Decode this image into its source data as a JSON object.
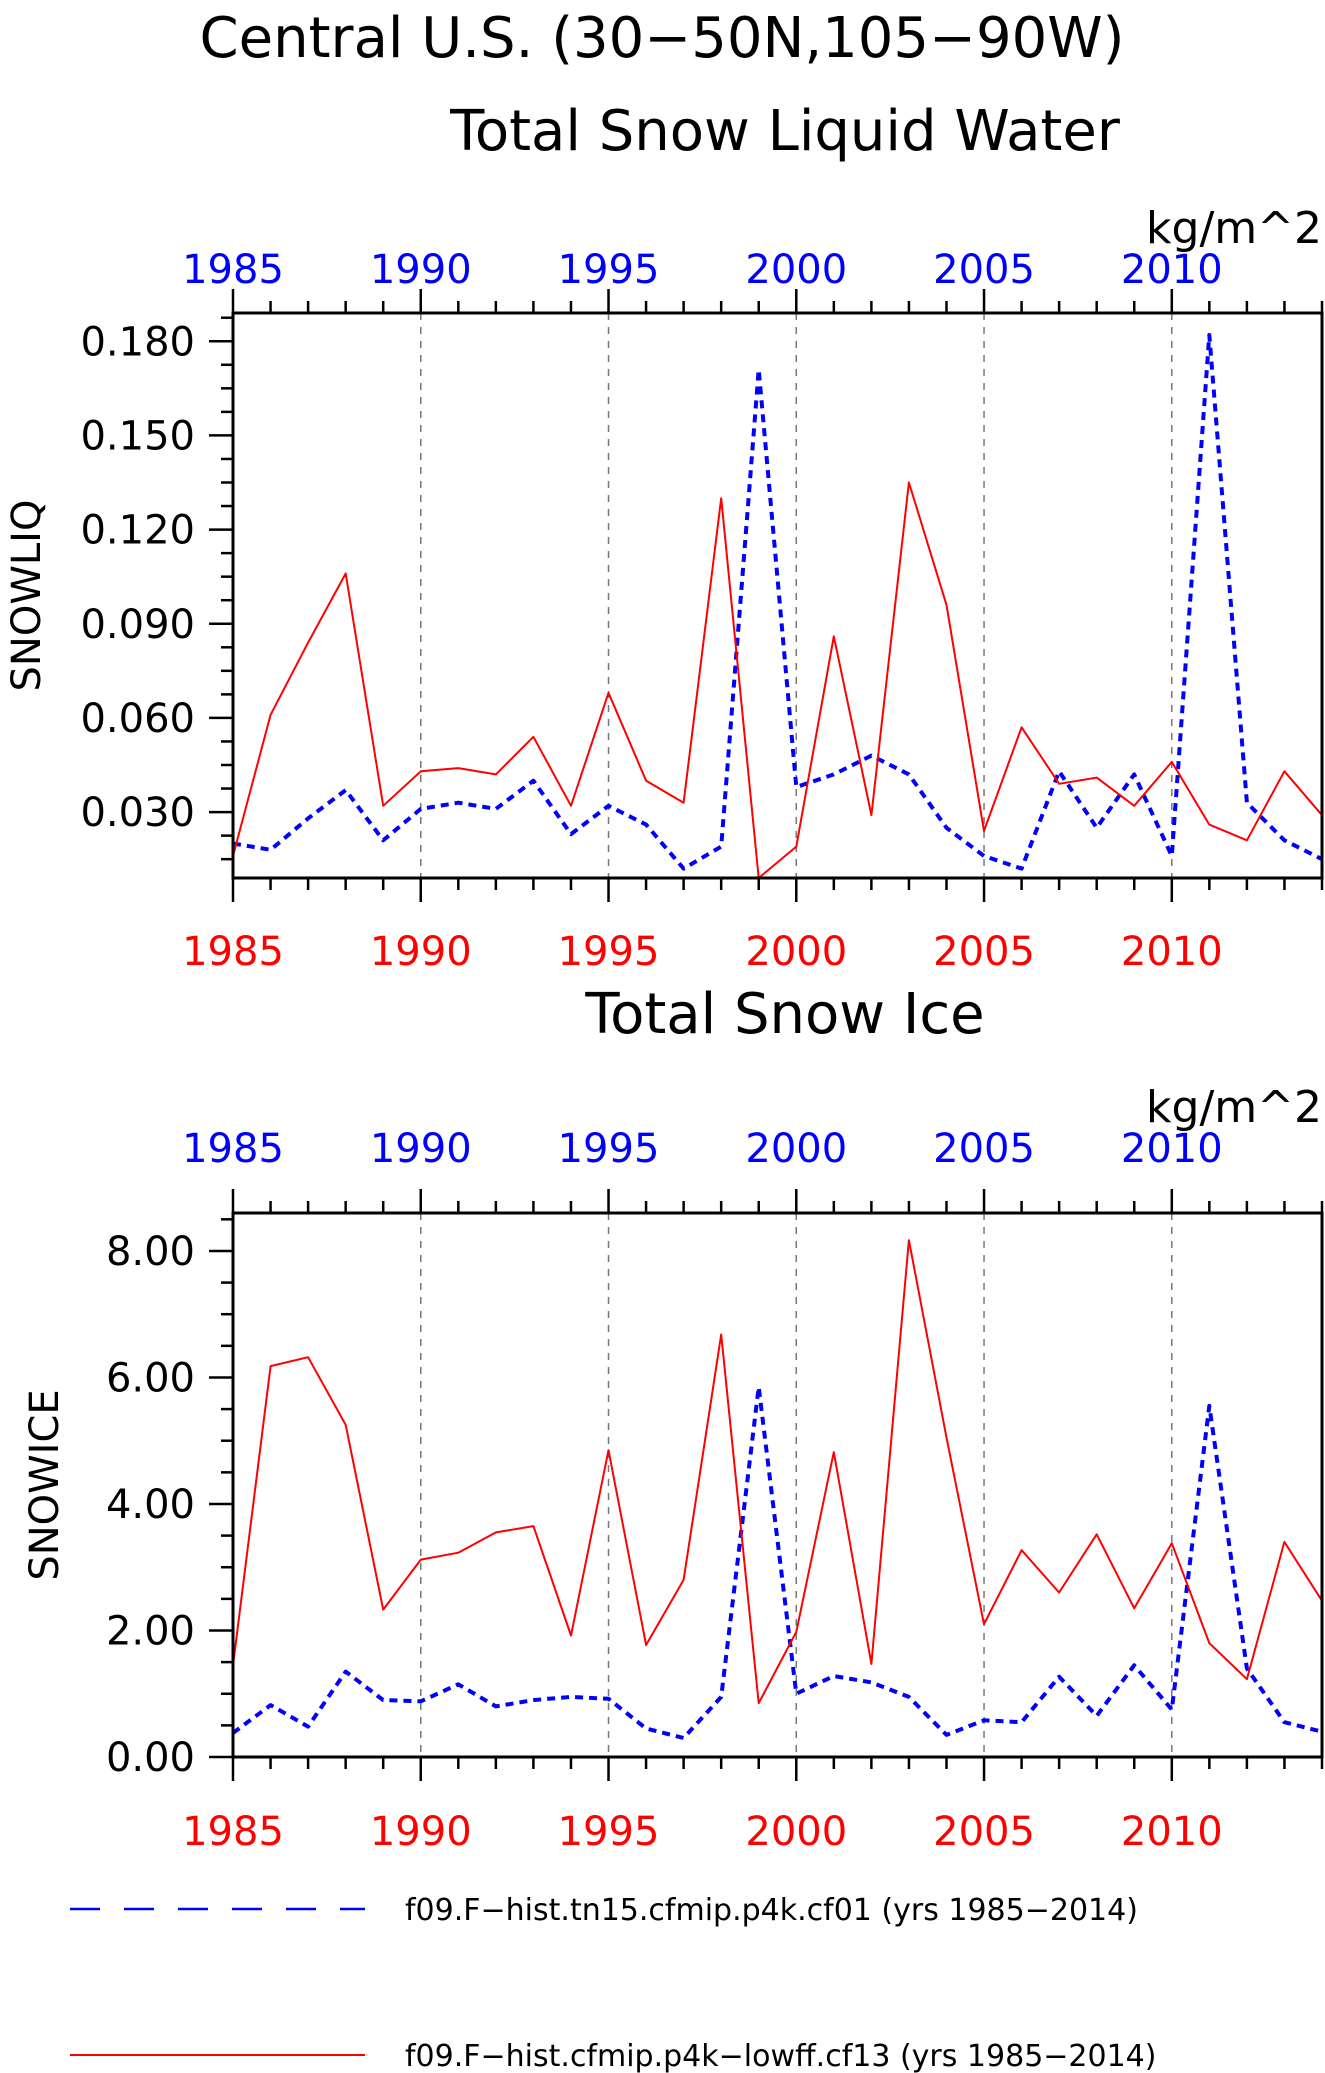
{
  "header": {
    "region_title": "Central U.S. (30−50N,105−90W)"
  },
  "colors": {
    "series_a": "#0000ff",
    "series_b": "#ff0000",
    "axis": "#000000",
    "grid": "#777777"
  },
  "chart_data": [
    {
      "type": "line",
      "title": "Total Snow Liquid Water",
      "units": "kg/m^2",
      "ylabel": "SNOWLIQ",
      "xlim": [
        1985,
        2014
      ],
      "ylim": [
        0.009,
        0.189
      ],
      "x_ticks": [
        "1985",
        "1990",
        "1995",
        "2000",
        "2005",
        "2010"
      ],
      "y_ticks": [
        "0.030",
        "0.060",
        "0.090",
        "0.120",
        "0.150",
        "0.180"
      ],
      "grid": "vertical dashed at major x ticks",
      "x": [
        1985,
        1986,
        1987,
        1988,
        1989,
        1990,
        1991,
        1992,
        1993,
        1994,
        1995,
        1996,
        1997,
        1998,
        1999,
        2000,
        2001,
        2002,
        2003,
        2004,
        2005,
        2006,
        2007,
        2008,
        2009,
        2010,
        2011,
        2012,
        2013,
        2014
      ],
      "series": [
        {
          "name": "f09.F−hist.tn15.cfmip.p4k.cf01 (yrs 1985−2014)",
          "style": "dashed",
          "values": [
            0.02,
            0.018,
            0.028,
            0.037,
            0.021,
            0.031,
            0.033,
            0.031,
            0.04,
            0.023,
            0.032,
            0.026,
            0.012,
            0.019,
            0.171,
            0.038,
            0.042,
            0.048,
            0.042,
            0.025,
            0.016,
            0.012,
            0.043,
            0.025,
            0.042,
            0.016,
            0.182,
            0.033,
            0.021,
            0.015
          ]
        },
        {
          "name": "f09.F−hist.cfmip.p4k−lowff.cf13 (yrs 1985−2014)",
          "style": "solid",
          "values": [
            0.016,
            0.061,
            0.084,
            0.106,
            0.032,
            0.043,
            0.044,
            0.042,
            0.054,
            0.032,
            0.068,
            0.04,
            0.033,
            0.13,
            0.009,
            0.019,
            0.086,
            0.029,
            0.135,
            0.096,
            0.024,
            0.057,
            0.039,
            0.041,
            0.032,
            0.046,
            0.026,
            0.021,
            0.043,
            0.029
          ]
        }
      ]
    },
    {
      "type": "line",
      "title": "Total Snow Ice",
      "units": "kg/m^2",
      "ylabel": "SNOWICE",
      "xlim": [
        1985,
        2014
      ],
      "ylim": [
        0.0,
        8.6
      ],
      "x_ticks": [
        "1985",
        "1990",
        "1995",
        "2000",
        "2005",
        "2010"
      ],
      "y_ticks": [
        "0.00",
        "2.00",
        "4.00",
        "6.00",
        "8.00"
      ],
      "grid": "vertical dashed at major x ticks",
      "x": [
        1985,
        1986,
        1987,
        1988,
        1989,
        1990,
        1991,
        1992,
        1993,
        1994,
        1995,
        1996,
        1997,
        1998,
        1999,
        2000,
        2001,
        2002,
        2003,
        2004,
        2005,
        2006,
        2007,
        2008,
        2009,
        2010,
        2011,
        2012,
        2013,
        2014
      ],
      "series": [
        {
          "name": "f09.F−hist.tn15.cfmip.p4k.cf01 (yrs 1985−2014)",
          "style": "dashed",
          "values": [
            0.38,
            0.82,
            0.48,
            1.35,
            0.9,
            0.88,
            1.15,
            0.8,
            0.9,
            0.95,
            0.92,
            0.45,
            0.3,
            0.95,
            5.85,
            1.0,
            1.28,
            1.18,
            0.95,
            0.35,
            0.58,
            0.55,
            1.27,
            0.65,
            1.45,
            0.75,
            5.55,
            1.4,
            0.55,
            0.4
          ]
        },
        {
          "name": "f09.F−hist.cfmip.p4k−lowff.cf13 (yrs 1985−2014)",
          "style": "solid",
          "values": [
            1.45,
            6.18,
            6.32,
            5.25,
            2.33,
            3.12,
            3.23,
            3.55,
            3.65,
            1.92,
            4.85,
            1.77,
            2.8,
            6.68,
            0.85,
            1.98,
            4.82,
            1.47,
            8.17,
            5.05,
            2.1,
            3.27,
            2.6,
            3.52,
            2.35,
            3.38,
            1.8,
            1.23,
            3.4,
            2.47
          ]
        }
      ]
    }
  ],
  "legend": {
    "items": [
      {
        "label": "f09.F−hist.tn15.cfmip.p4k.cf01 (yrs 1985−2014)",
        "style": "dashed",
        "color": "#0000ff"
      },
      {
        "label": "f09.F−hist.cfmip.p4k−lowff.cf13 (yrs 1985−2014)",
        "style": "solid",
        "color": "#ff0000"
      }
    ]
  }
}
